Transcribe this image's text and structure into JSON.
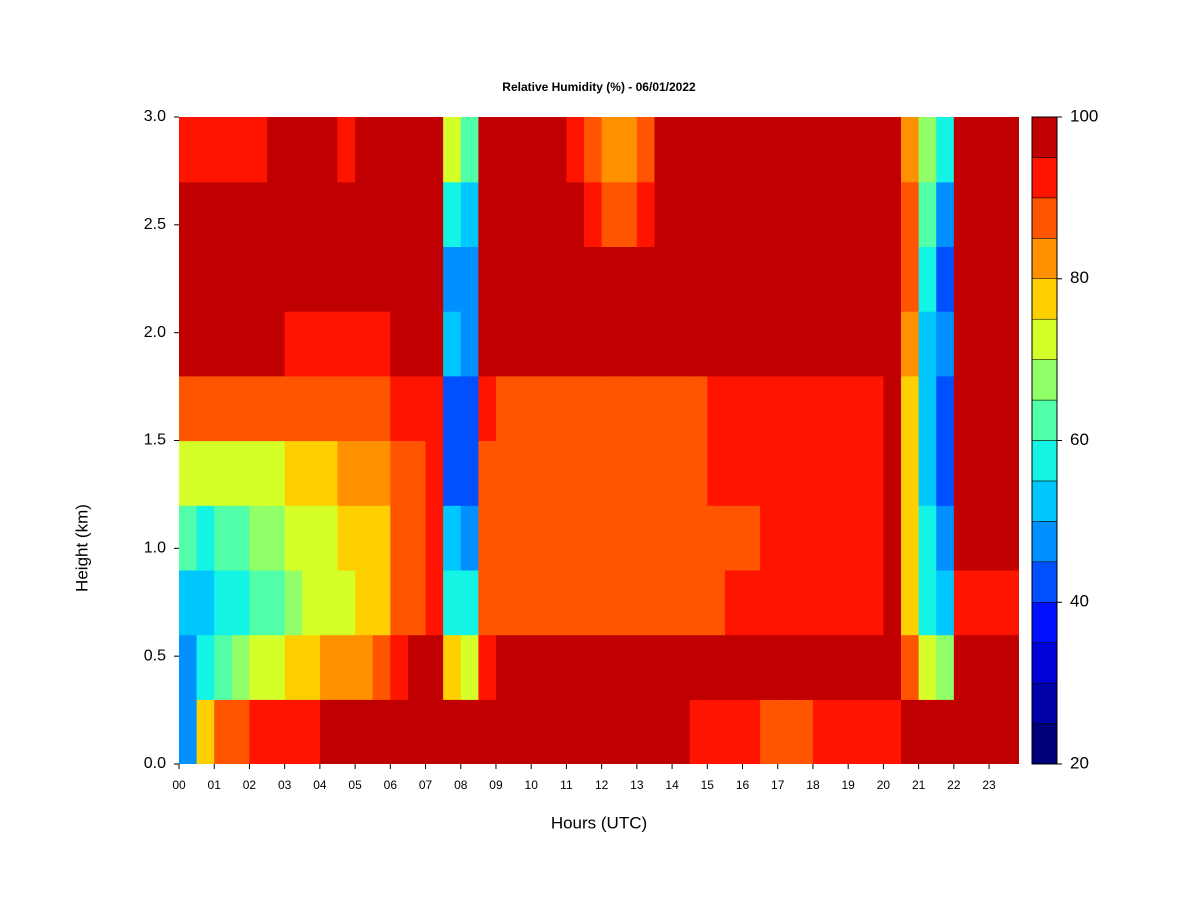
{
  "chart_data": {
    "type": "heatmap",
    "title": "Relative Humidity (%) - 06/01/2022",
    "xlabel": "Hours (UTC)",
    "ylabel": "Height (km)",
    "xlim": [
      0,
      23.85
    ],
    "ylim": [
      0,
      3
    ],
    "xticks": [
      {
        "value": 0,
        "label": "00"
      },
      {
        "value": 1,
        "label": "01"
      },
      {
        "value": 2,
        "label": "02"
      },
      {
        "value": 3,
        "label": "03"
      },
      {
        "value": 4,
        "label": "04"
      },
      {
        "value": 5,
        "label": "05"
      },
      {
        "value": 6,
        "label": "06"
      },
      {
        "value": 7,
        "label": "07"
      },
      {
        "value": 8,
        "label": "08"
      },
      {
        "value": 9,
        "label": "09"
      },
      {
        "value": 10,
        "label": "10"
      },
      {
        "value": 11,
        "label": "11"
      },
      {
        "value": 12,
        "label": "12"
      },
      {
        "value": 13,
        "label": "13"
      },
      {
        "value": 14,
        "label": "14"
      },
      {
        "value": 15,
        "label": "15"
      },
      {
        "value": 16,
        "label": "16"
      },
      {
        "value": 17,
        "label": "17"
      },
      {
        "value": 18,
        "label": "18"
      },
      {
        "value": 19,
        "label": "19"
      },
      {
        "value": 20,
        "label": "20"
      },
      {
        "value": 21,
        "label": "21"
      },
      {
        "value": 22,
        "label": "22"
      },
      {
        "value": 23,
        "label": "23"
      }
    ],
    "yticks": [
      {
        "value": 0,
        "label": "0.0"
      },
      0.5,
      {
        "value": 1,
        "label": "1.0"
      },
      1.5,
      {
        "value": 2,
        "label": "2.0"
      },
      2.5,
      {
        "value": 3,
        "label": "3.0"
      }
    ],
    "x": [
      0.25,
      0.75,
      1.25,
      1.75,
      2.25,
      2.75,
      3.25,
      3.75,
      4.25,
      4.75,
      5.25,
      5.75,
      6.25,
      6.75,
      7.25,
      7.75,
      8.25,
      8.75,
      9.25,
      9.75,
      10.25,
      10.75,
      11.25,
      11.75,
      12.25,
      12.75,
      13.25,
      13.75,
      14.25,
      14.75,
      15.25,
      15.75,
      16.25,
      16.75,
      17.25,
      17.75,
      18.25,
      18.75,
      19.25,
      19.75,
      20.25,
      20.75,
      21.25,
      21.75,
      22.25,
      22.75,
      23.25,
      23.75
    ],
    "y": [
      0.15,
      0.45,
      0.75,
      1.05,
      1.35,
      1.65,
      1.95,
      2.25,
      2.55,
      2.85
    ],
    "z": [
      [
        45,
        75,
        85,
        87,
        90,
        90,
        92,
        93,
        95,
        95,
        96,
        96,
        97,
        97,
        97,
        97,
        98,
        98,
        98,
        98,
        98,
        98,
        98,
        98,
        98,
        98,
        98,
        97,
        96,
        94,
        92,
        90,
        90,
        89,
        89,
        89,
        90,
        90,
        91,
        92,
        94,
        97,
        95,
        95,
        97,
        97,
        97,
        95
      ],
      [
        45,
        55,
        62,
        65,
        70,
        72,
        75,
        77,
        80,
        82,
        83,
        85,
        92,
        95,
        96,
        75,
        70,
        93,
        97,
        97,
        97,
        97,
        97,
        97,
        97,
        97,
        97,
        97,
        97,
        96,
        96,
        96,
        96,
        96,
        96,
        96,
        96,
        96,
        97,
        97,
        97,
        85,
        70,
        65,
        95,
        96,
        96,
        95
      ],
      [
        50,
        52,
        55,
        56,
        60,
        62,
        68,
        70,
        73,
        74,
        75,
        78,
        86,
        88,
        90,
        55,
        55,
        88,
        88,
        89,
        88,
        88,
        88,
        88,
        88,
        88,
        88,
        88,
        89,
        89,
        89,
        90,
        90,
        90,
        90,
        90,
        90,
        91,
        92,
        93,
        95,
        75,
        55,
        50,
        92,
        93,
        92,
        92
      ],
      [
        60,
        58,
        60,
        62,
        65,
        67,
        70,
        72,
        74,
        75,
        76,
        78,
        87,
        88,
        90,
        50,
        45,
        88,
        88,
        88,
        87,
        88,
        88,
        88,
        88,
        88,
        88,
        88,
        89,
        89,
        89,
        89,
        89,
        90,
        90,
        90,
        90,
        91,
        92,
        94,
        96,
        75,
        55,
        45,
        96,
        97,
        96,
        95
      ],
      [
        70,
        70,
        70,
        70,
        72,
        73,
        75,
        76,
        78,
        80,
        80,
        82,
        88,
        88,
        90,
        42,
        40,
        88,
        88,
        88,
        88,
        88,
        89,
        88,
        88,
        88,
        88,
        88,
        89,
        89,
        90,
        90,
        90,
        90,
        90,
        90,
        90,
        91,
        92,
        94,
        96,
        75,
        50,
        40,
        97,
        97,
        97,
        97
      ],
      [
        85,
        85,
        85,
        85,
        85,
        85,
        85,
        86,
        87,
        88,
        88,
        88,
        90,
        90,
        91,
        40,
        40,
        90,
        89,
        88,
        88,
        88,
        88,
        88,
        88,
        88,
        88,
        89,
        89,
        89,
        90,
        90,
        90,
        90,
        90,
        90,
        91,
        92,
        93,
        94,
        95,
        75,
        50,
        40,
        97,
        98,
        98,
        97
      ],
      [
        95,
        97,
        97,
        97,
        96,
        95,
        94,
        94,
        94,
        94,
        94,
        94,
        95,
        95,
        96,
        50,
        45,
        95,
        96,
        96,
        95,
        95,
        95,
        95,
        95,
        95,
        95,
        96,
        96,
        96,
        97,
        97,
        97,
        97,
        97,
        97,
        97,
        97,
        97,
        98,
        98,
        80,
        50,
        45,
        98,
        98,
        98,
        98
      ],
      [
        98,
        98,
        98,
        98,
        98,
        98,
        98,
        98,
        98,
        98,
        98,
        98,
        98,
        98,
        98,
        45,
        45,
        98,
        98,
        98,
        98,
        98,
        98,
        98,
        97,
        97,
        98,
        98,
        98,
        98,
        98,
        98,
        98,
        98,
        98,
        98,
        98,
        98,
        98,
        98,
        98,
        85,
        55,
        40,
        98,
        98,
        98,
        98
      ],
      [
        98,
        98,
        98,
        98,
        98,
        98,
        98,
        98,
        98,
        97,
        98,
        98,
        98,
        98,
        98,
        55,
        50,
        98,
        98,
        98,
        98,
        98,
        96,
        90,
        88,
        88,
        92,
        98,
        98,
        98,
        98,
        98,
        98,
        98,
        98,
        98,
        98,
        98,
        98,
        98,
        98,
        85,
        60,
        45,
        98,
        98,
        98,
        98
      ],
      [
        90,
        92,
        93,
        92,
        94,
        95,
        96,
        96,
        96,
        92,
        95,
        97,
        97,
        97,
        97,
        70,
        60,
        97,
        97,
        97,
        96,
        95,
        92,
        85,
        80,
        80,
        85,
        97,
        97,
        97,
        97,
        97,
        97,
        97,
        97,
        97,
        97,
        97,
        97,
        97,
        97,
        80,
        65,
        55,
        97,
        97,
        97,
        96
      ]
    ],
    "levels": [
      20,
      25,
      30,
      35,
      40,
      45,
      50,
      55,
      60,
      65,
      70,
      75,
      80,
      85,
      90,
      95,
      100
    ],
    "colors": [
      "#00007a",
      "#0000a8",
      "#0000d8",
      "#0010ff",
      "#0050ff",
      "#0090ff",
      "#00c8ff",
      "#14f4e4",
      "#50ffa8",
      "#90ff68",
      "#d4ff28",
      "#ffd000",
      "#ff9000",
      "#ff5400",
      "#ff1400",
      "#c00000"
    ],
    "colorbar_ticks": [
      20,
      40,
      60,
      80,
      100
    ]
  }
}
